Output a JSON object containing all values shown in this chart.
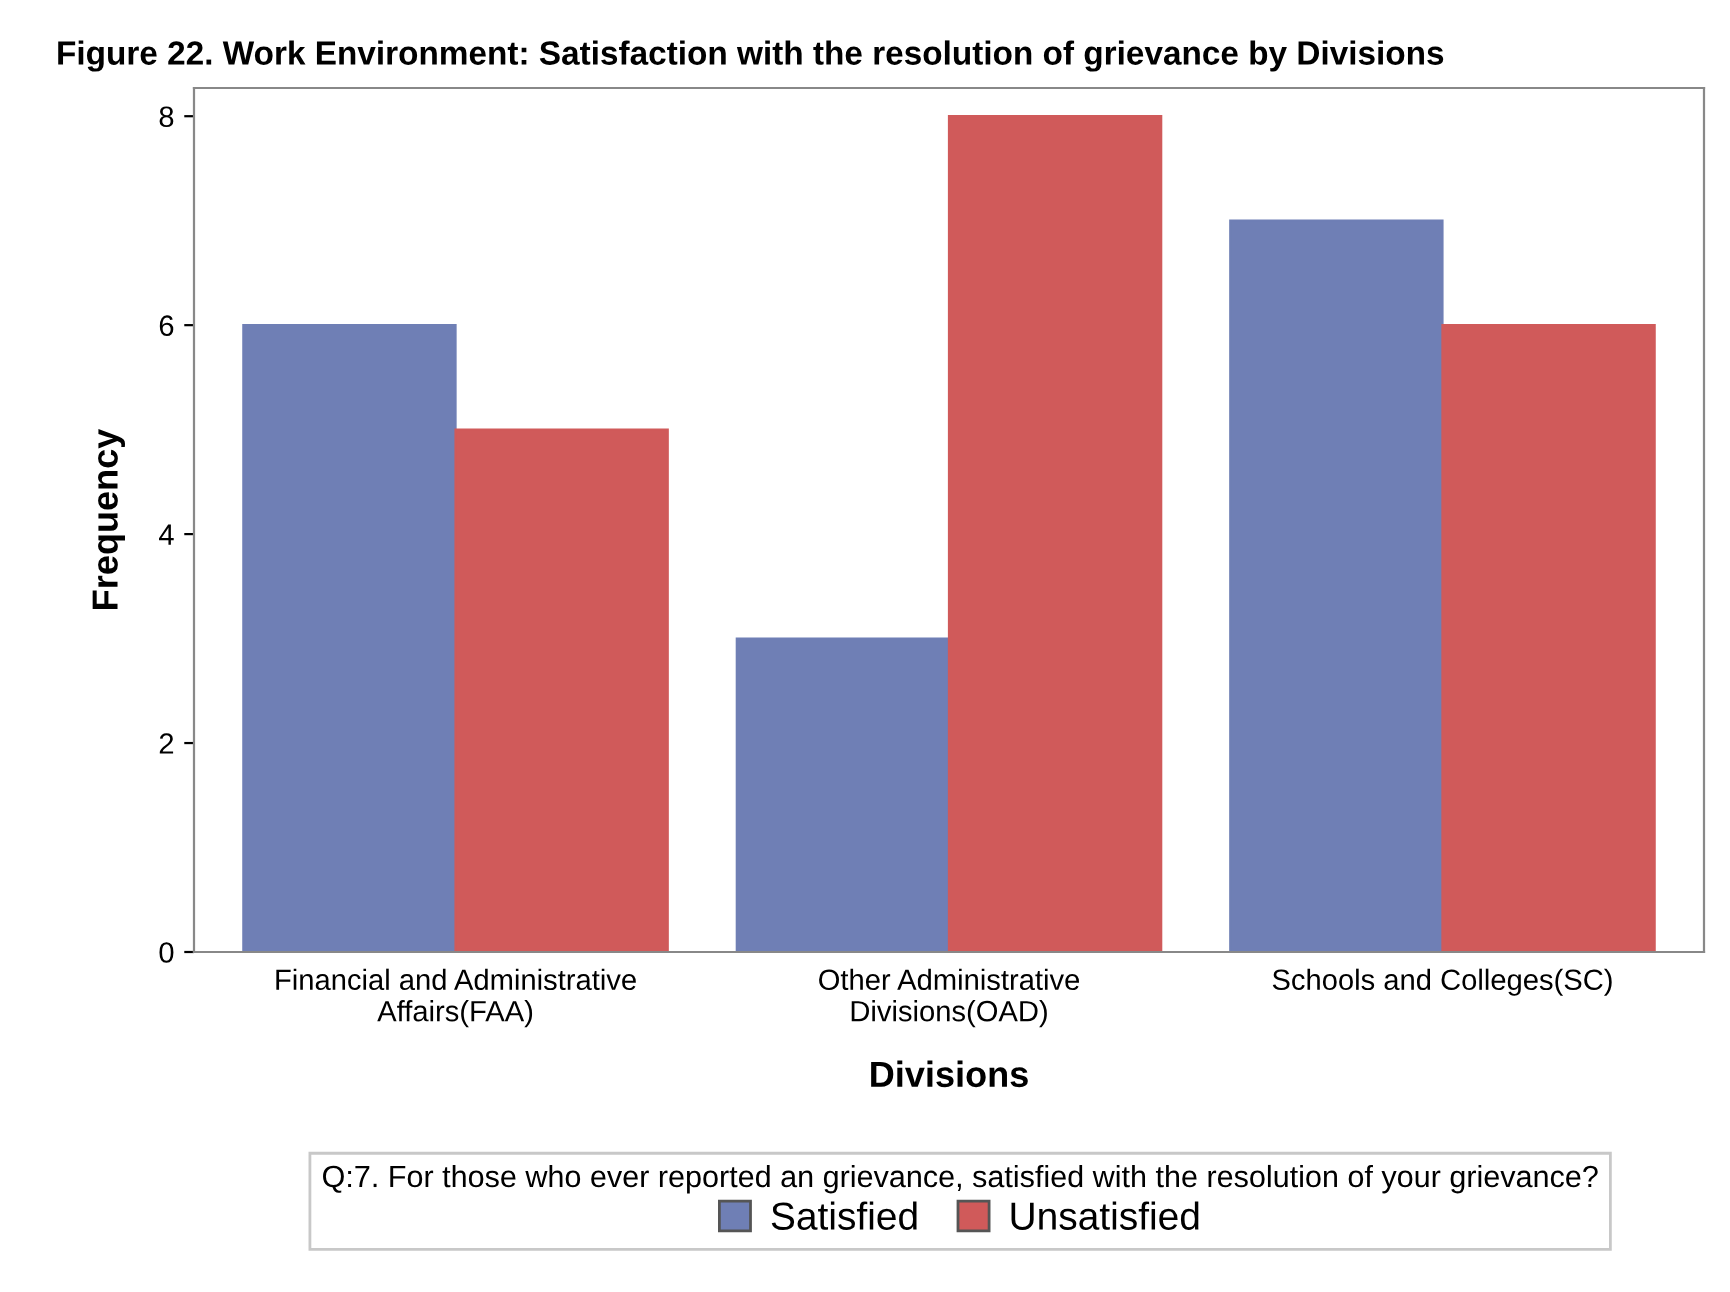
{
  "chart_data": {
    "type": "bar",
    "title": "Figure 22. Work Environment: Satisfaction with the resolution of grievance by Divisions",
    "xlabel": "Divisions",
    "ylabel": "Frequency",
    "categories": [
      "Financial and Administrative\nAffairs(FAA)",
      "Other Administrative\nDivisions(OAD)",
      "Schools and Colleges(SC)"
    ],
    "series": [
      {
        "name": "Satisfied",
        "color": "#6f7fb5",
        "values": [
          6,
          3,
          7
        ]
      },
      {
        "name": "Unsatisfied",
        "color": "#d05a5a",
        "values": [
          5,
          8,
          6
        ]
      }
    ],
    "legend_title": "Q:7. For those who ever reported an grievance, satisfied with the resolution of your grievance?",
    "legend": "bottom",
    "ylim": [
      0,
      8.27
    ],
    "yticks": [
      0,
      2,
      4,
      6,
      8
    ],
    "grid": false
  }
}
